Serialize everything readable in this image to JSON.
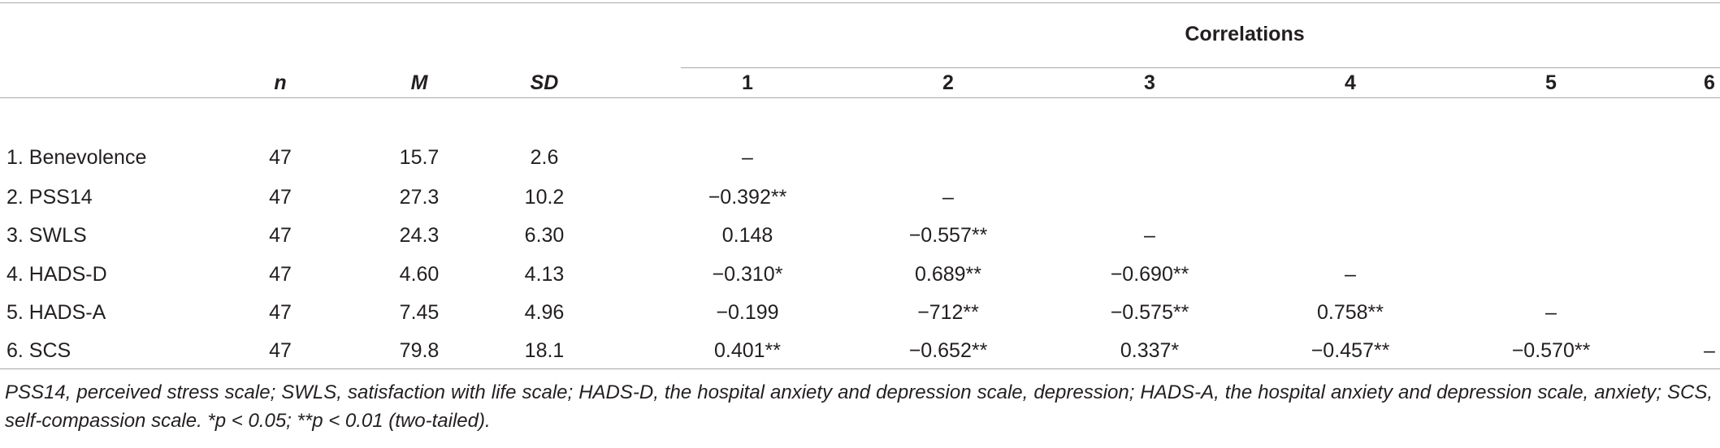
{
  "table": {
    "group_header": "Correlations",
    "columns": [
      "n",
      "M",
      "SD",
      "1",
      "2",
      "3",
      "4",
      "5",
      "6"
    ],
    "rows": [
      {
        "label": "1. Benevolence",
        "n": "47",
        "M": "15.7",
        "SD": "2.6",
        "corr": [
          "–",
          "",
          "",
          "",
          "",
          ""
        ]
      },
      {
        "label": "2. PSS14",
        "n": "47",
        "M": "27.3",
        "SD": "10.2",
        "corr": [
          "−0.392**",
          "–",
          "",
          "",
          "",
          ""
        ]
      },
      {
        "label": "3. SWLS",
        "n": "47",
        "M": "24.3",
        "SD": "6.30",
        "corr": [
          "0.148",
          "−0.557**",
          "–",
          "",
          "",
          ""
        ]
      },
      {
        "label": "4. HADS-D",
        "n": "47",
        "M": "4.60",
        "SD": "4.13",
        "corr": [
          "−0.310*",
          "0.689**",
          "−0.690**",
          "–",
          "",
          ""
        ]
      },
      {
        "label": "5. HADS-A",
        "n": "47",
        "M": "7.45",
        "SD": "4.96",
        "corr": [
          "−0.199",
          "−712**",
          "−0.575**",
          "0.758**",
          "–",
          ""
        ]
      },
      {
        "label": "6. SCS",
        "n": "47",
        "M": "79.8",
        "SD": "18.1",
        "corr": [
          "0.401**",
          "−0.652**",
          "0.337*",
          "−0.457**",
          "−0.570**",
          "–"
        ]
      }
    ],
    "footnote": "PSS14, perceived stress scale; SWLS, satisfaction with life scale; HADS-D, the hospital anxiety and depression scale, depression; HADS-A, the hospital anxiety and depression scale, anxiety; SCS, self-compassion scale. *p < 0.05; **p < 0.01 (two-tailed)."
  }
}
